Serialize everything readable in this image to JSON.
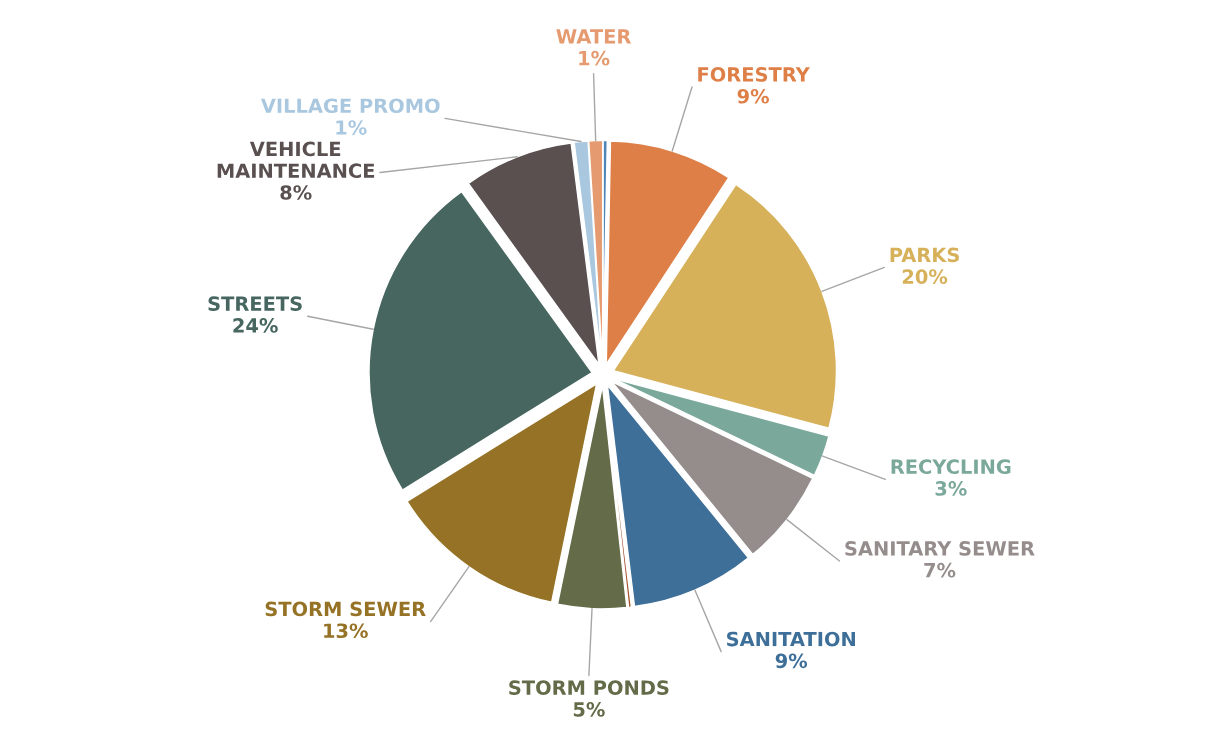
{
  "chart_data": {
    "type": "pie",
    "categories": [
      null,
      "FORESTRY",
      "PARKS",
      "RECYCLING",
      "SANITARY SEWER",
      "SANITATION",
      null,
      "STORM PONDS",
      "STORM SEWER",
      "STREETS",
      "VEHICLE MAINTENANCE",
      "VILLAGE PROMO",
      "WATER"
    ],
    "values": [
      0.3,
      9,
      20,
      3,
      7,
      9,
      0.2,
      5,
      13,
      24,
      8,
      1,
      1
    ],
    "value_labels": [
      null,
      "9%",
      "20%",
      "3%",
      "7%",
      "9%",
      null,
      "5%",
      "13%",
      "24%",
      "8%",
      "1%",
      "1%"
    ],
    "colors": [
      "#4f86b8",
      "#dd7f46",
      "#d7b05a",
      "#7aa89a",
      "#958d8b",
      "#3e6f99",
      "#a0522d",
      "#646b48",
      "#957225",
      "#46665f",
      "#5a5050",
      "#a9c8e0",
      "#e59b6f"
    ],
    "legend": false
  }
}
